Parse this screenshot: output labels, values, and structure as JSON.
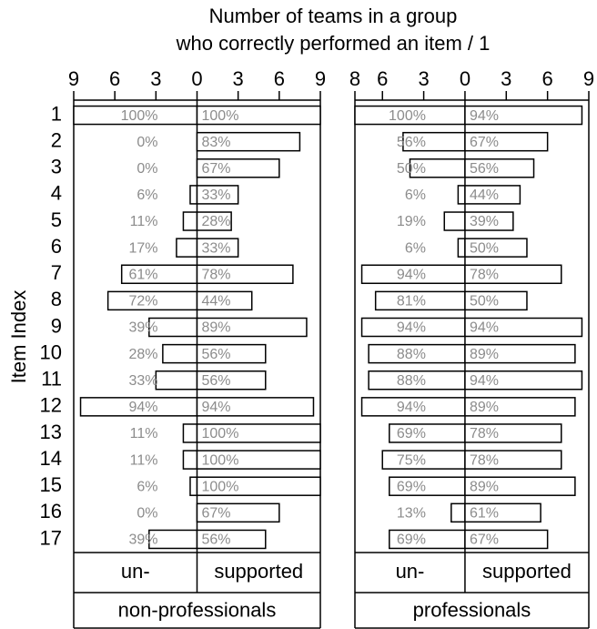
{
  "chart_data": [
    {
      "type": "bar",
      "orientation": "horizontal",
      "title": [
        "Number of teams in a group",
        "who correctly performed an item / 1"
      ],
      "ylabel": "Item Index",
      "group": "non-professionals",
      "categories": [
        "1",
        "2",
        "3",
        "4",
        "5",
        "6",
        "7",
        "8",
        "9",
        "10",
        "11",
        "12",
        "13",
        "14",
        "15",
        "16",
        "17"
      ],
      "xlim": [
        -9,
        9
      ],
      "xticks": [
        {
          "value": -9,
          "label": "9"
        },
        {
          "value": -6,
          "label": "6"
        },
        {
          "value": -3,
          "label": "3"
        },
        0,
        3,
        6,
        9
      ],
      "color": "#ffffff",
      "series": [
        {
          "name": "un-",
          "values": [
            -9,
            0,
            0,
            -0.5,
            -1,
            -1.5,
            -5.5,
            -6.5,
            -3.5,
            -2.5,
            -3,
            -8.5,
            -1,
            -1,
            -0.5,
            0,
            -3.5
          ],
          "percent_labels": [
            "100%",
            "0%",
            "0%",
            "6%",
            "11%",
            "17%",
            "61%",
            "72%",
            "39%",
            "28%",
            "33%",
            "94%",
            "11%",
            "11%",
            "6%",
            "0%",
            "39%"
          ]
        },
        {
          "name": "supported",
          "values": [
            9,
            7.5,
            6,
            3,
            2.5,
            3,
            7,
            4,
            8,
            5,
            5,
            8.5,
            9,
            9,
            9,
            6,
            5
          ],
          "percent_labels": [
            "100%",
            "83%",
            "67%",
            "33%",
            "28%",
            "33%",
            "78%",
            "44%",
            "89%",
            "56%",
            "56%",
            "94%",
            "100%",
            "100%",
            "100%",
            "67%",
            "56%"
          ]
        }
      ]
    },
    {
      "type": "bar",
      "orientation": "horizontal",
      "group": "professionals",
      "xlim": [
        -8,
        9
      ],
      "xticks": [
        {
          "value": -8,
          "label": "8"
        },
        {
          "value": -6,
          "label": "6"
        },
        {
          "value": -3,
          "label": "3"
        },
        0,
        3,
        6,
        9
      ],
      "color": "#ffffff",
      "series": [
        {
          "name": "un-",
          "values": [
            -8,
            -4.5,
            -4,
            -0.5,
            -1.5,
            -0.5,
            -7.5,
            -6.5,
            -7.5,
            -7,
            -7,
            -7.5,
            -5.5,
            -6,
            -5.5,
            -1,
            -5.5
          ],
          "percent_labels": [
            "100%",
            "56%",
            "50%",
            "6%",
            "19%",
            "6%",
            "94%",
            "81%",
            "94%",
            "88%",
            "88%",
            "94%",
            "69%",
            "75%",
            "69%",
            "13%",
            "69%"
          ]
        },
        {
          "name": "supported",
          "values": [
            8.5,
            6,
            5,
            4,
            3.5,
            4.5,
            7,
            4.5,
            8.5,
            8,
            8.5,
            8,
            7,
            7,
            8,
            5.5,
            6
          ],
          "percent_labels": [
            "94%",
            "67%",
            "56%",
            "44%",
            "39%",
            "50%",
            "78%",
            "50%",
            "94%",
            "89%",
            "94%",
            "89%",
            "78%",
            "78%",
            "89%",
            "61%",
            "67%"
          ]
        }
      ]
    }
  ]
}
